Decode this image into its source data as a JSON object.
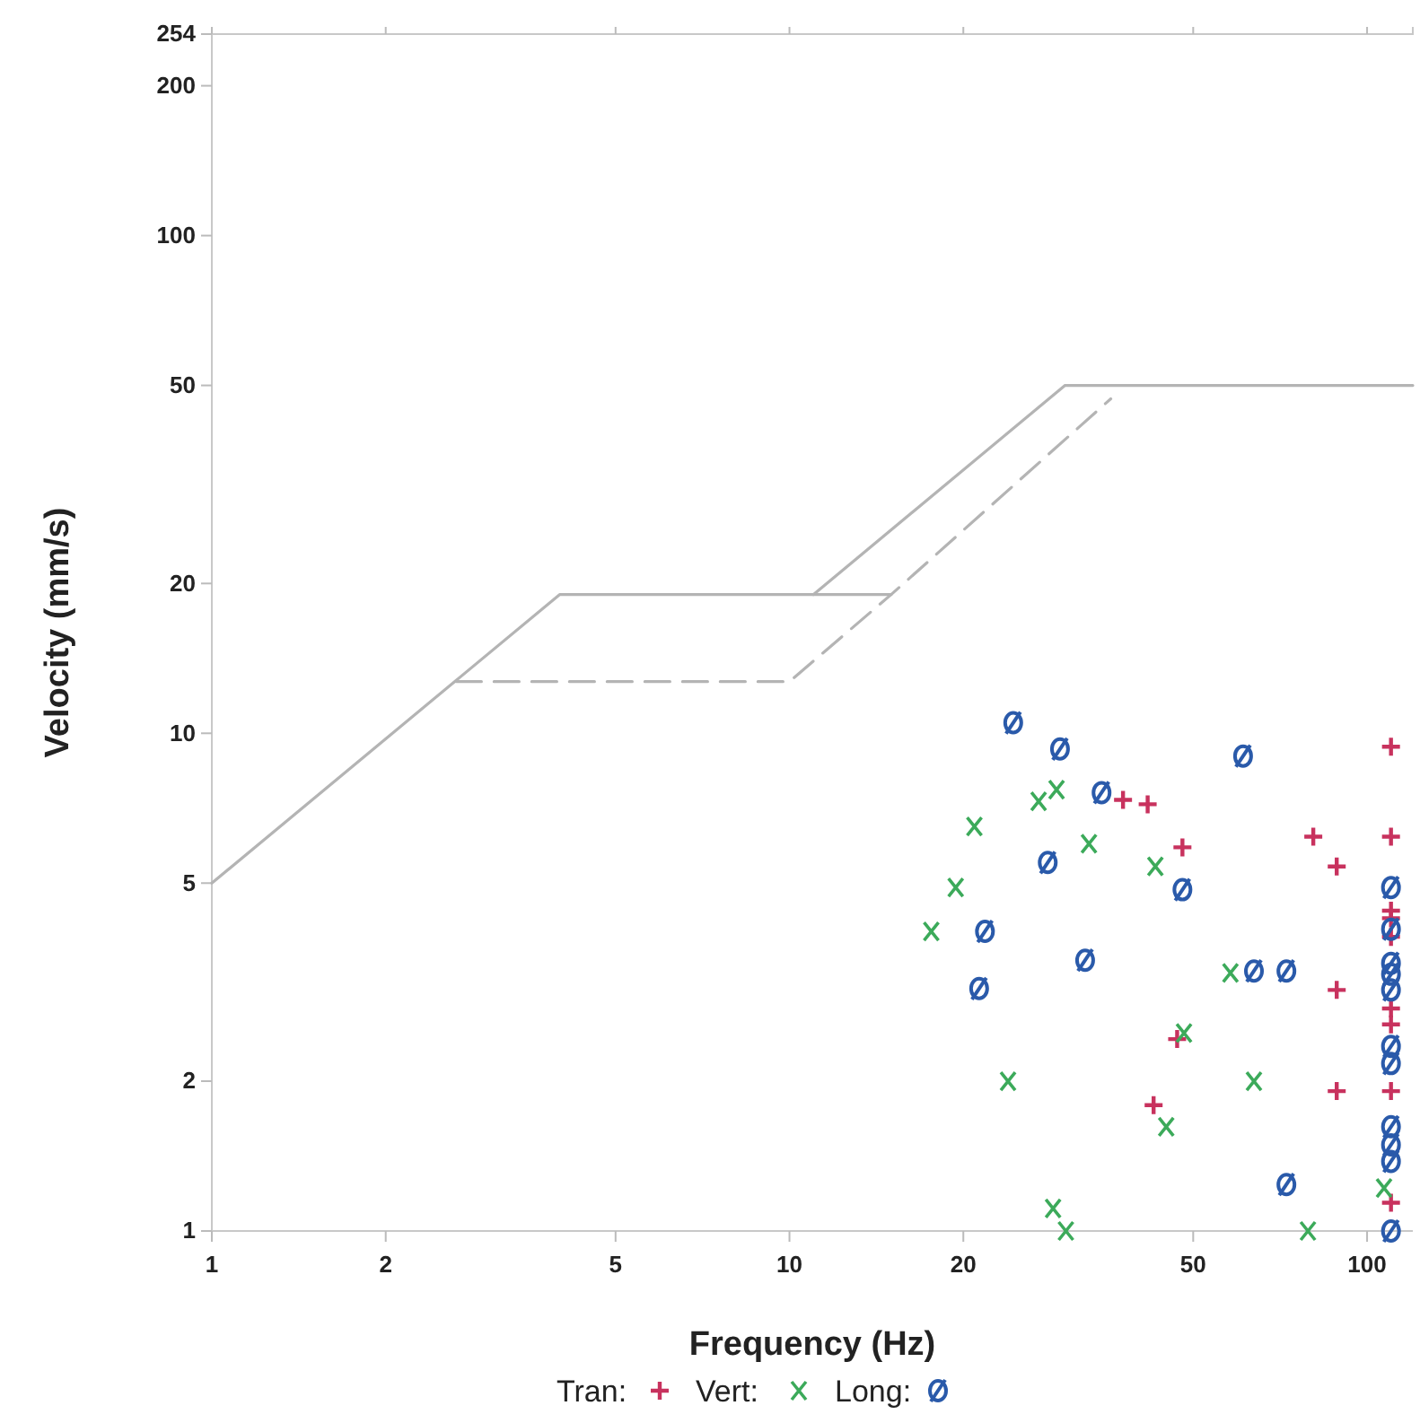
{
  "chart_data": {
    "type": "scatter",
    "xlabel": "Frequency (Hz)",
    "ylabel": "Velocity (mm/s)",
    "log": "xy",
    "xlim": [
      1,
      120
    ],
    "ylim": [
      1,
      254
    ],
    "xticks": [
      1,
      2,
      5,
      10,
      20,
      50,
      100
    ],
    "yticks": [
      1,
      2,
      5,
      10,
      20,
      50,
      100,
      200,
      254
    ],
    "grid": false,
    "legend": "bottom",
    "series": [
      {
        "type": "line",
        "color": "#b4b4b4",
        "line_style": "solid",
        "marker": "none",
        "x": [
          1,
          4,
          15
        ],
        "values": [
          5,
          19,
          19
        ]
      },
      {
        "type": "line",
        "color": "#b4b4b4",
        "line_style": "solid",
        "marker": "none",
        "x": [
          11,
          30,
          120
        ],
        "values": [
          19,
          50,
          50
        ]
      },
      {
        "type": "line",
        "color": "#b4b4b4",
        "line_style": "dashed",
        "marker": "none",
        "x": [
          2.65,
          10,
          15,
          36
        ],
        "values": [
          12.7,
          12.7,
          19,
          47
        ]
      },
      {
        "type": "scatter",
        "name": "Tran:",
        "color": "#c8325e",
        "marker": "cross",
        "x": [
          37.8,
          41.7,
          47.9,
          80.7,
          88.6,
          88.6,
          88.6,
          42.7,
          46.9,
          110,
          110,
          110,
          110,
          110,
          110,
          110,
          110,
          110
        ],
        "values": [
          7.35,
          7.2,
          5.9,
          6.2,
          5.4,
          3.05,
          1.91,
          1.79,
          2.43,
          9.4,
          6.2,
          4.4,
          4.25,
          3.9,
          2.8,
          2.6,
          1.91,
          1.14
        ]
      },
      {
        "type": "scatter",
        "name": "Vert:",
        "color": "#3caa5a",
        "marker": "x",
        "x": [
          20.9,
          19.4,
          17.6,
          27,
          29,
          33,
          43,
          23.9,
          58,
          63.7,
          44.9,
          48.2,
          28.6,
          30.1,
          79,
          107
        ],
        "values": [
          6.5,
          4.9,
          4,
          7.3,
          7.7,
          6,
          5.4,
          2,
          3.3,
          2,
          1.62,
          2.5,
          1.11,
          1,
          1,
          1.22
        ]
      },
      {
        "type": "scatter",
        "name": "Long:",
        "color": "#2a5aaa",
        "x": [
          24.4,
          29.4,
          34.7,
          61,
          28,
          47.9,
          21.8,
          21.3,
          32.5,
          63.7,
          72.5,
          72.5,
          110,
          110,
          110,
          110,
          110,
          110,
          110,
          110,
          110,
          110,
          110
        ],
        "values": [
          10.5,
          9.3,
          7.6,
          9,
          5.5,
          4.85,
          4,
          3.07,
          3.5,
          3.33,
          3.33,
          1.24,
          4.9,
          4.04,
          3.45,
          3.28,
          3.05,
          2.35,
          2.17,
          1.62,
          1.49,
          1.38,
          1
        ]
      }
    ]
  }
}
